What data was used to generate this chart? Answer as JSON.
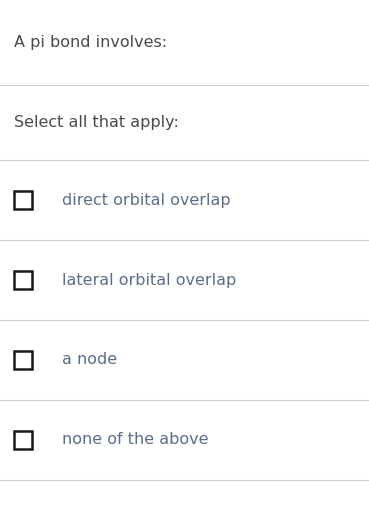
{
  "title": "A pi bond involves:",
  "subtitle": "Select all that apply:",
  "options": [
    "direct orbital overlap",
    "lateral orbital overlap",
    "a node",
    "none of the above"
  ],
  "bg_color": "#ffffff",
  "title_color": "#4a4a4a",
  "subtitle_color": "#4a4a4a",
  "option_text_color": "#5a6e8a",
  "divider_color": "#cccccc",
  "checkbox_edge_color": "#1a1a1a",
  "title_fontsize": 11.5,
  "subtitle_fontsize": 11.5,
  "option_fontsize": 11.5,
  "figwidth": 3.69,
  "figheight": 5.14,
  "dpi": 100
}
